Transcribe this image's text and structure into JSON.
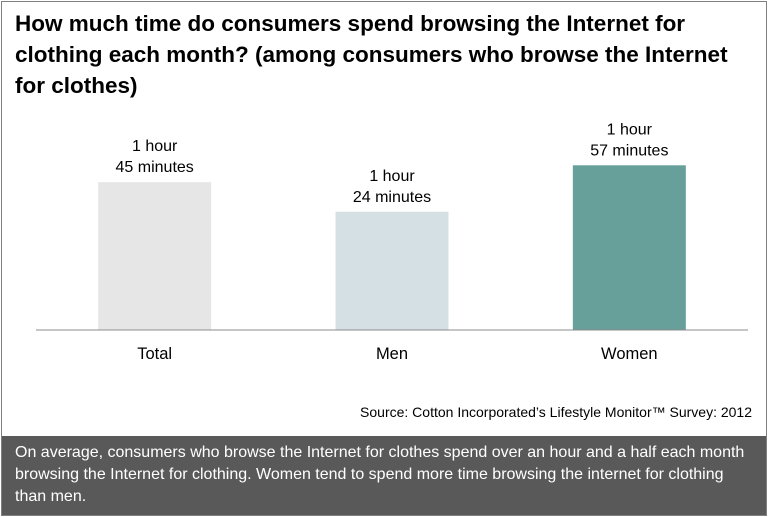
{
  "title": "How much time do consumers spend browsing the Internet for clothing each month? (among consumers who browse the Internet for clothes)",
  "chart_data": {
    "type": "bar",
    "categories": [
      "Total",
      "Men",
      "Women"
    ],
    "values": [
      105,
      84,
      117
    ],
    "unit": "minutes",
    "data_labels": [
      [
        "1 hour",
        "45 minutes"
      ],
      [
        "1 hour",
        "24 minutes"
      ],
      [
        "1 hour",
        "57 minutes"
      ]
    ],
    "bar_colors": [
      "#e6e6e6",
      "#d4e0e3",
      "#679f9b"
    ],
    "ylim": [
      0,
      130
    ],
    "grid": false,
    "legend": "none",
    "xlabel": "",
    "ylabel": ""
  },
  "source": "Source: Cotton Incorporated’s Lifestyle Monitor™ Survey: 2012",
  "footer": "On average, consumers who browse the Internet for clothes spend over an hour and a half each month browsing the Internet for clothing.  Women tend to spend more time browsing the internet for clothing than men."
}
